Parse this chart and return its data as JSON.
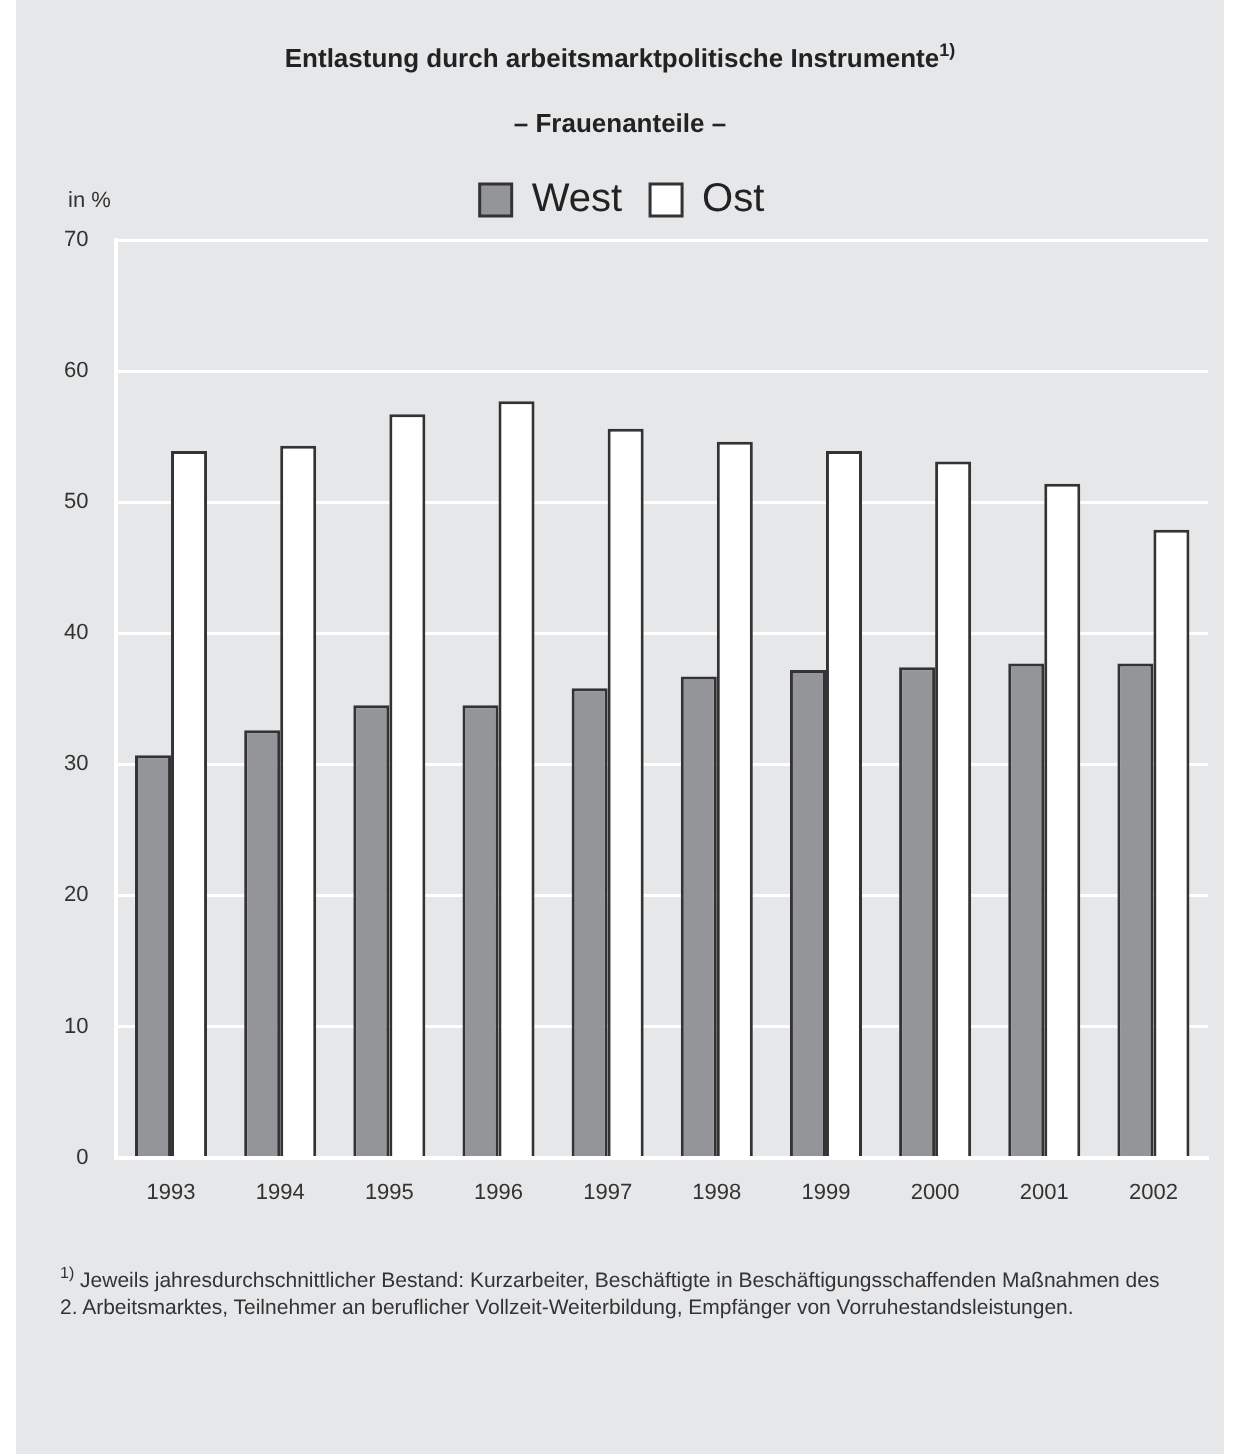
{
  "chart_data": {
    "type": "bar",
    "title": "Entlastung durch arbeitsmarktpolitische Instrumente$^{1)}$",
    "subtitle": "– Frauenanteile –",
    "ylabel": "in %",
    "categories": [
      "1993",
      "1994",
      "1995",
      "1996",
      "1997",
      "1998",
      "1999",
      "2000",
      "2001",
      "2002"
    ],
    "series": [
      {
        "name": "West",
        "color": "#939598",
        "values": [
          30.7,
          32.6,
          34.5,
          34.5,
          35.8,
          36.7,
          37.2,
          37.4,
          37.7,
          37.7
        ]
      },
      {
        "name": "Ost",
        "color": "#ffffff",
        "values": [
          53.9,
          54.3,
          56.7,
          57.7,
          55.6,
          54.6,
          53.9,
          53.1,
          51.4,
          47.9
        ]
      }
    ],
    "ylim": [
      0,
      70
    ],
    "yticks": [
      0,
      10,
      20,
      30,
      40,
      50,
      60,
      70
    ],
    "grid": "y",
    "legend": "top",
    "annotations": [
      "$^{1)}$ Jeweils jahresdurchschnittlicher Bestand: Kurzarbeiter, Beschäftigte in Beschäftigungsschaffenden Maßnahmen des 2. Arbeitsmarktes, Teilnehmer an beruflicher Vollzeit-Weiterbildung, Empfänger von Vorruhestandsleistungen."
    ]
  }
}
